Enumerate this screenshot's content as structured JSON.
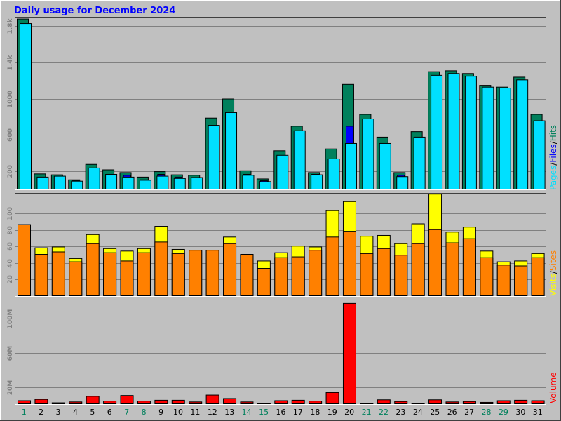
{
  "title": "Daily usage for December 2024",
  "colors": {
    "frame_bg": "#c0c0c0",
    "title": "#0000ff",
    "hits": "#00805c",
    "files": "#0000ff",
    "pages": "#00e0ff",
    "visits": "#ffff00",
    "sites": "#ff8000",
    "volume": "#ff0000",
    "weekday_label": "#000000",
    "weekend_label": "#00805c",
    "grid": "#808080",
    "tick_label": "#808080"
  },
  "legends": {
    "top": [
      {
        "text": "Pages",
        "color": "#00e0ff"
      },
      {
        "text": "/",
        "color": "#000000"
      },
      {
        "text": "Files",
        "color": "#0000ff"
      },
      {
        "text": "/",
        "color": "#000000"
      },
      {
        "text": "Hits",
        "color": "#00805c"
      }
    ],
    "middle": [
      {
        "text": "Visits",
        "color": "#ffff00"
      },
      {
        "text": "/",
        "color": "#000000"
      },
      {
        "text": "Sites",
        "color": "#ff8000"
      }
    ],
    "bottom": [
      {
        "text": "Volume",
        "color": "#ff0000"
      }
    ]
  },
  "chart_data": [
    {
      "type": "bar",
      "panel": "hits-files-pages",
      "categories": [
        "1",
        "2",
        "3",
        "4",
        "5",
        "6",
        "7",
        "8",
        "9",
        "10",
        "11",
        "12",
        "13",
        "14",
        "15",
        "16",
        "17",
        "18",
        "19",
        "20",
        "21",
        "22",
        "23",
        "24",
        "25",
        "26",
        "27",
        "28",
        "29",
        "30",
        "31"
      ],
      "weekend_days": [
        "1",
        "7",
        "8",
        "14",
        "15",
        "21",
        "22",
        "28",
        "29"
      ],
      "yticks": [
        200,
        600,
        1000,
        1400,
        1800
      ],
      "ytick_labels": [
        "200",
        "600",
        "1000",
        "1.4k",
        "1.8k"
      ],
      "ylim": [
        0,
        1900
      ],
      "series": [
        {
          "name": "Hits",
          "values": [
            1880,
            175,
            165,
            110,
            280,
            220,
            190,
            140,
            200,
            165,
            160,
            790,
            1000,
            210,
            120,
            430,
            700,
            190,
            450,
            1160,
            830,
            580,
            190,
            640,
            1300,
            1310,
            1280,
            1150,
            1130,
            1240,
            830
          ]
        },
        {
          "name": "Files",
          "values": [
            380,
            130,
            110,
            100,
            240,
            160,
            160,
            110,
            170,
            140,
            130,
            170,
            480,
            170,
            100,
            130,
            140,
            170,
            260,
            700,
            190,
            230,
            160,
            160,
            180,
            180,
            200,
            130,
            110,
            170,
            160
          ]
        },
        {
          "name": "Pages",
          "values": [
            1830,
            140,
            150,
            95,
            240,
            170,
            140,
            105,
            150,
            125,
            135,
            710,
            850,
            160,
            90,
            380,
            650,
            165,
            340,
            510,
            780,
            510,
            145,
            580,
            1260,
            1280,
            1250,
            1130,
            1120,
            1210,
            760
          ]
        }
      ]
    },
    {
      "type": "bar",
      "panel": "visits-sites",
      "categories": [
        "1",
        "2",
        "3",
        "4",
        "5",
        "6",
        "7",
        "8",
        "9",
        "10",
        "11",
        "12",
        "13",
        "14",
        "15",
        "16",
        "17",
        "18",
        "19",
        "20",
        "21",
        "22",
        "23",
        "24",
        "25",
        "26",
        "27",
        "28",
        "29",
        "30",
        "31"
      ],
      "yticks": [
        20,
        40,
        60,
        80,
        100
      ],
      "ytick_labels": [
        "20",
        "40",
        "60",
        "80",
        "100"
      ],
      "ylim": [
        0,
        125
      ],
      "series": [
        {
          "name": "Visits",
          "values": [
            87,
            59,
            60,
            46,
            75,
            58,
            55,
            58,
            85,
            57,
            56,
            56,
            72,
            51,
            43,
            53,
            61,
            60,
            104,
            115,
            73,
            74,
            64,
            88,
            124,
            78,
            84,
            55,
            42,
            43,
            52
          ]
        },
        {
          "name": "Sites",
          "values": [
            87,
            51,
            54,
            42,
            64,
            53,
            43,
            53,
            66,
            52,
            56,
            56,
            64,
            51,
            34,
            47,
            48,
            56,
            72,
            79,
            52,
            58,
            50,
            64,
            81,
            65,
            70,
            47,
            38,
            37,
            47
          ]
        }
      ]
    },
    {
      "type": "bar",
      "panel": "volume",
      "categories": [
        "1",
        "2",
        "3",
        "4",
        "5",
        "6",
        "7",
        "8",
        "9",
        "10",
        "11",
        "12",
        "13",
        "14",
        "15",
        "16",
        "17",
        "18",
        "19",
        "20",
        "21",
        "22",
        "23",
        "24",
        "25",
        "26",
        "27",
        "28",
        "29",
        "30",
        "31"
      ],
      "yticks": [
        20,
        60,
        100
      ],
      "ytick_labels": [
        "20M",
        "60M",
        "100M"
      ],
      "ylim": [
        0,
        122
      ],
      "series": [
        {
          "name": "Volume",
          "values": [
            4.5,
            6,
            2,
            3,
            9.5,
            4,
            10.5,
            4,
            5,
            5,
            3,
            11,
            7,
            3,
            1.5,
            4.5,
            5,
            4,
            14,
            118,
            1.5,
            5.5,
            3.5,
            1.5,
            5.5,
            3,
            3.5,
            2.5,
            4.5,
            5,
            4.5
          ]
        }
      ]
    }
  ]
}
